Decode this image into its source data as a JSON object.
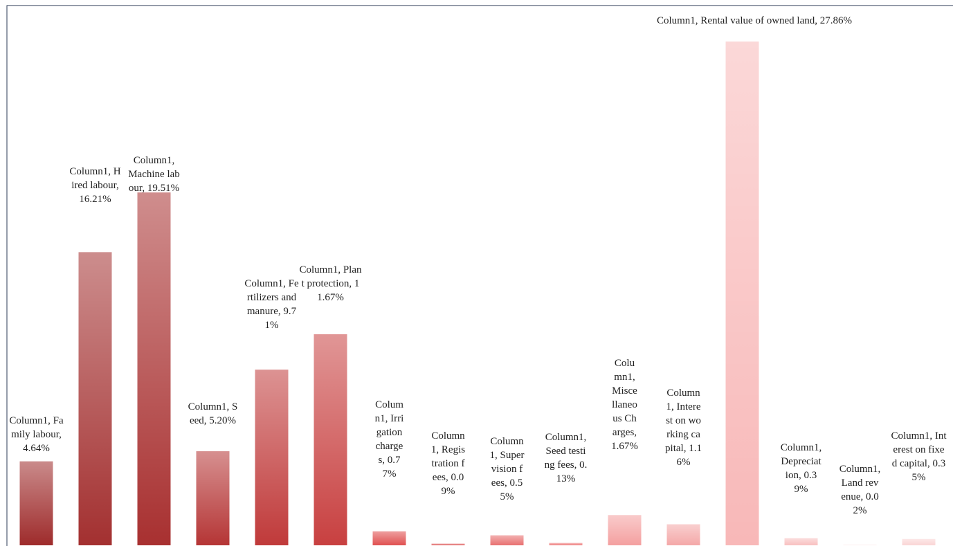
{
  "chart_data": {
    "type": "bar",
    "values": [
      4.64,
      16.21,
      19.51,
      5.2,
      9.71,
      11.67,
      0.77,
      0.09,
      0.55,
      0.13,
      1.67,
      1.16,
      27.86,
      0.39,
      0.02,
      0.35
    ],
    "value_labels": [
      "Column1, Family labour, 4.64%",
      "Column1, Hired labour, 16.21%",
      "Column1, Machine labour, 19.51%",
      "Column1, Seed, 5.20%",
      "Column1, Fertilizers and manure, 9.71%",
      "Column1, Plant protection, 11.67%",
      "Column1, Irrigation charges, 0.77%",
      "Column1, Registration fees, 0.09%",
      "Column1, Supervision fees, 0.55%",
      "Column1, Seed testing fees, 0.13%",
      "Column1, Miscellaneous Charges, 1.67%",
      "Column1, Interest on working capital, 1.16%",
      "Column1, Rental value of owned land, 27.86%",
      "Column1, Depreciation, 0.39%",
      "Column1, Land revenue, 0.02%",
      "Column1, Interest on fixed capital, 0.35%"
    ],
    "colors": [
      "#9e2b2b",
      "#a33030",
      "#a83030",
      "#b53535",
      "#c03a3a",
      "#c84040",
      "#e05050",
      "#e06060",
      "#e87070",
      "#ee8080",
      "#f4a0a0",
      "#f4a8a8",
      "#f8b8b8",
      "#f8c0c0",
      "#fad0d0",
      "#fad5d5"
    ]
  }
}
